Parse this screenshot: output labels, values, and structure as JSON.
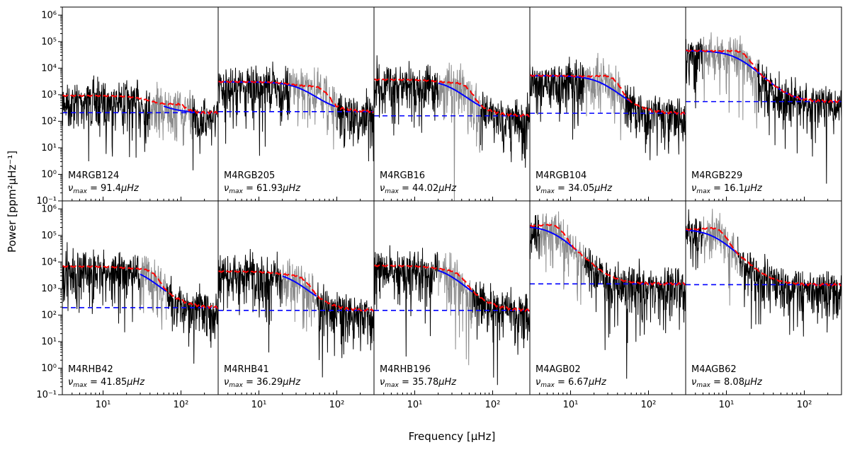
{
  "figure": {
    "ylabel": "Power [ppm²μHz⁻¹]",
    "xlabel": "Frequency [μHz]",
    "xscale": "log",
    "yscale": "log",
    "xlim": [
      3,
      300
    ],
    "ylim": [
      0.1,
      2000000
    ],
    "x_ticks": [
      {
        "value": 10,
        "label": "10¹"
      },
      {
        "value": 100,
        "label": "10²"
      }
    ],
    "y_ticks": [
      {
        "value": 0.1,
        "label": "10⁻¹"
      },
      {
        "value": 1,
        "label": "10⁰"
      },
      {
        "value": 10,
        "label": "10¹"
      },
      {
        "value": 100,
        "label": "10²"
      },
      {
        "value": 1000,
        "label": "10³"
      },
      {
        "value": 10000,
        "label": "10⁴"
      },
      {
        "value": 100000,
        "label": "10⁵"
      },
      {
        "value": 1000000,
        "label": "10⁶"
      }
    ],
    "colors": {
      "spectrum": "#000000",
      "oscillation_region": "#8c8c8c",
      "smoothed": "#ff0000",
      "background_fit": "#0000ff",
      "white_noise": "#0000ff"
    },
    "numax_label_prefix": "ν",
    "numax_label_sub": "max",
    "numax_unit": "μHz"
  },
  "chart_data": [
    {
      "type": "line",
      "star": "M4RGB124",
      "numax_text": "91.4",
      "numax": 91.4,
      "noise": 210,
      "bg_level": 700,
      "bg_knee": 40,
      "fit_range": [
        60,
        150
      ],
      "excess": 1.4,
      "gray_range": [
        40,
        140
      ]
    },
    {
      "type": "line",
      "star": "M4RGB205",
      "numax_text": "61.93",
      "numax": 61.93,
      "noise": 230,
      "bg_level": 2800,
      "bg_knee": 35,
      "fit_range": [
        3,
        95
      ],
      "excess": 2.0,
      "gray_range": [
        25,
        100
      ]
    },
    {
      "type": "line",
      "star": "M4RGB16",
      "numax_text": "44.02",
      "numax": 44.02,
      "noise": 160,
      "bg_level": 3500,
      "bg_knee": 28,
      "fit_range": [
        20,
        70
      ],
      "excess": 1.9,
      "gray_range": [
        20,
        70
      ]
    },
    {
      "type": "line",
      "star": "M4RGB104",
      "numax_text": "34.05",
      "numax": 34.05,
      "noise": 200,
      "bg_level": 5000,
      "bg_knee": 25,
      "fit_range": [
        3,
        60
      ],
      "excess": 2.0,
      "gray_range": [
        15,
        50
      ]
    },
    {
      "type": "line",
      "star": "M4RGB229",
      "numax_text": "16.1",
      "numax": 16.1,
      "noise": 550,
      "bg_level": 45000,
      "bg_knee": 14,
      "fit_range": [
        3,
        100
      ],
      "excess": 1.6,
      "gray_range": [
        5,
        25
      ]
    },
    {
      "type": "line",
      "star": "M4RHB42",
      "numax_text": "41.85",
      "numax": 41.85,
      "noise": 190,
      "bg_level": 6500,
      "bg_knee": 30,
      "fit_range": [
        30,
        65
      ],
      "excess": 1.7,
      "gray_range": [
        30,
        65
      ]
    },
    {
      "type": "line",
      "star": "M4RHB41",
      "numax_text": "36.29",
      "numax": 36.29,
      "noise": 150,
      "bg_level": 4200,
      "bg_knee": 25,
      "fit_range": [
        20,
        55
      ],
      "excess": 1.6,
      "gray_range": [
        20,
        55
      ]
    },
    {
      "type": "line",
      "star": "M4RHB196",
      "numax_text": "35.78",
      "numax": 35.78,
      "noise": 150,
      "bg_level": 7000,
      "bg_knee": 25,
      "fit_range": [
        20,
        55
      ],
      "excess": 1.5,
      "gray_range": [
        20,
        55
      ]
    },
    {
      "type": "line",
      "star": "M4AGB02",
      "numax_text": "6.67",
      "numax": 6.67,
      "noise": 1500,
      "bg_level": 230000,
      "bg_knee": 6,
      "fit_range": [
        3,
        12
      ],
      "excess": 1.7,
      "gray_range": [
        4,
        15
      ]
    },
    {
      "type": "line",
      "star": "M4AGB62",
      "numax_text": "8.08",
      "numax": 8.08,
      "noise": 1400,
      "bg_level": 170000,
      "bg_knee": 7,
      "fit_range": [
        3,
        14
      ],
      "excess": 1.8,
      "gray_range": [
        5,
        14
      ]
    }
  ]
}
